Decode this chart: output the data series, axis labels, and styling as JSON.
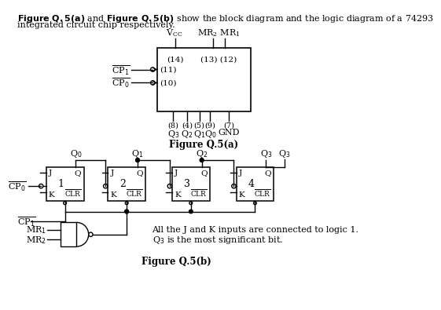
{
  "bg_color": "#ffffff",
  "fig_a_label": "Figure Q.5(a)",
  "fig_b_label": "Figure Q.5(b)",
  "title_bold": "Figure Q.5(a) and Figure Q.5(b)",
  "title_rest": " show the block diagram and the logic diagram of a 74293",
  "title_line2": "integrated circuit chip respectively."
}
